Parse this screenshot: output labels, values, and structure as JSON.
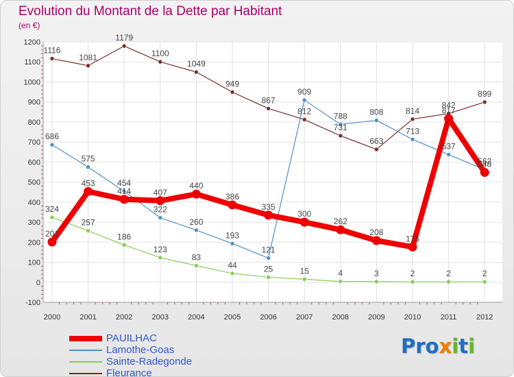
{
  "header": {
    "title": "Evolution du Montant de la Dette par Habitant",
    "subtitle": "(en €)"
  },
  "logo": {
    "text": "Proxiti"
  },
  "chart_data": {
    "type": "line",
    "title": "Evolution du Montant de la Dette par Habitant",
    "subtitle": "(en €)",
    "xlabel": "",
    "ylabel": "",
    "categories": [
      "2000",
      "2001",
      "2002",
      "2003",
      "2004",
      "2005",
      "2006",
      "2007",
      "2008",
      "2009",
      "2010",
      "2011",
      "2012"
    ],
    "ylim": [
      -100,
      1200
    ],
    "yticks": [
      -100,
      0,
      100,
      200,
      300,
      400,
      500,
      600,
      700,
      800,
      900,
      1000,
      1100,
      1200
    ],
    "grid": true,
    "legend_position": "bottom-left",
    "series": [
      {
        "name": "PAUILHAC",
        "color": "#ee0000",
        "values": [
          201,
          453,
          414,
          407,
          440,
          386,
          335,
          300,
          262,
          208,
          176,
          817,
          548
        ],
        "labels": [
          "201",
          "453",
          "414",
          "407",
          "440",
          "386",
          "335",
          "300",
          "262",
          "208",
          "176",
          "817",
          "548"
        ]
      },
      {
        "name": "Lamothe-Goas",
        "color": "#4a90c8",
        "values": [
          686,
          575,
          454,
          322,
          260,
          193,
          121,
          909,
          788,
          808,
          713,
          637,
          562
        ],
        "labels": [
          "686",
          "575",
          "454",
          "322",
          "260",
          "193",
          "121",
          "909",
          "788",
          "808",
          "713",
          "637",
          "562"
        ]
      },
      {
        "name": "Sainte-Radegonde",
        "color": "#88cc55",
        "values": [
          324,
          257,
          186,
          123,
          83,
          44,
          25,
          15,
          4,
          3,
          2,
          2,
          2
        ],
        "labels": [
          "324",
          "257",
          "186",
          "123",
          "83",
          "44",
          "25",
          "15",
          "4",
          "3",
          "2",
          "2",
          "2"
        ]
      },
      {
        "name": "Fleurance",
        "color": "#7a2a2a",
        "values": [
          1116,
          1081,
          1179,
          1100,
          1049,
          949,
          867,
          812,
          731,
          663,
          814,
          842,
          899
        ],
        "labels": [
          "1116",
          "1081",
          "1179",
          "1100",
          "1049",
          "949",
          "867",
          "812",
          "731",
          "663",
          "814",
          "842",
          "899"
        ]
      }
    ]
  }
}
